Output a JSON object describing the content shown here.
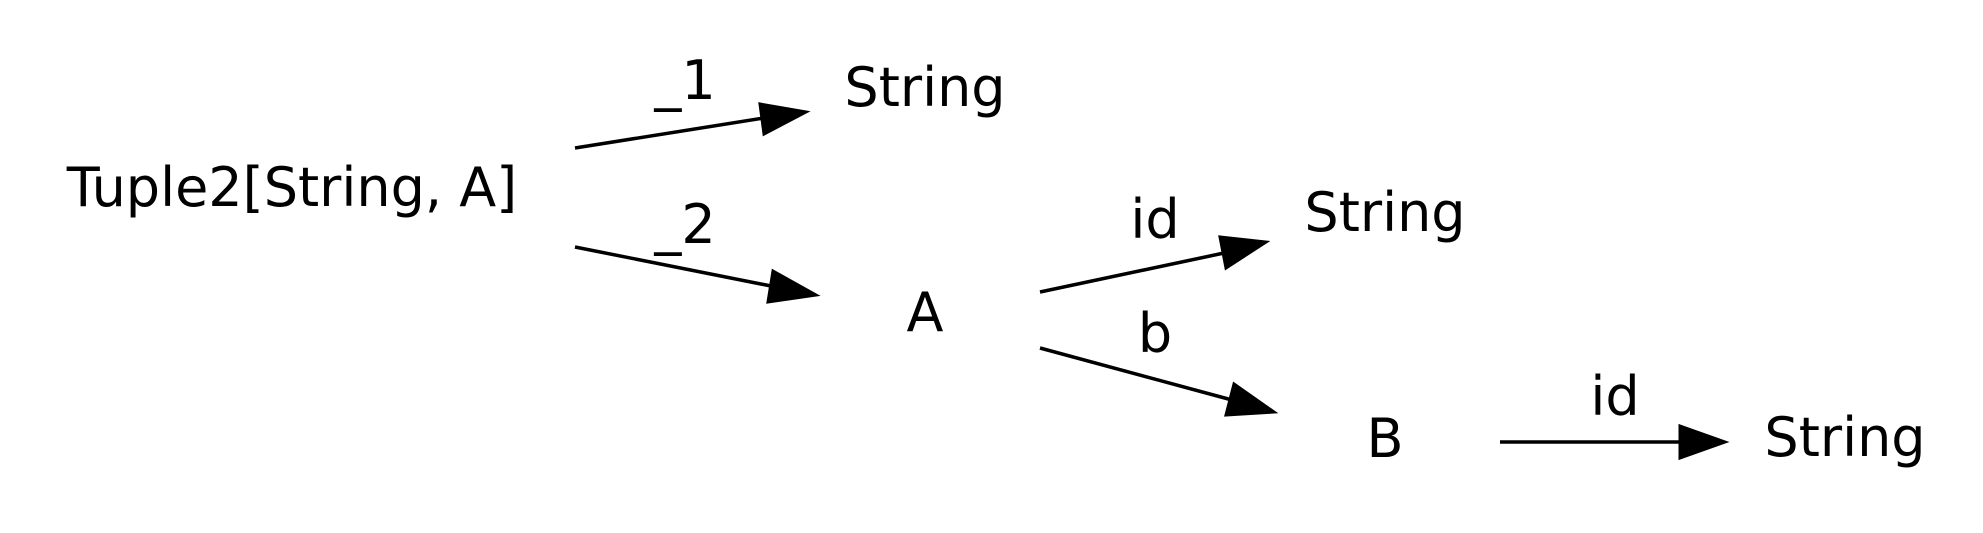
{
  "nodes": {
    "root": "Tuple2[String, A]",
    "string_1": "String",
    "a": "A",
    "string_a_id": "String",
    "b": "B",
    "string_b_id": "String"
  },
  "edges": {
    "root_1": "_1",
    "root_2": "_2",
    "a_id": "id",
    "a_b": "b",
    "b_id": "id"
  },
  "colors": {
    "stroke": "#000000",
    "background": "#ffffff"
  }
}
